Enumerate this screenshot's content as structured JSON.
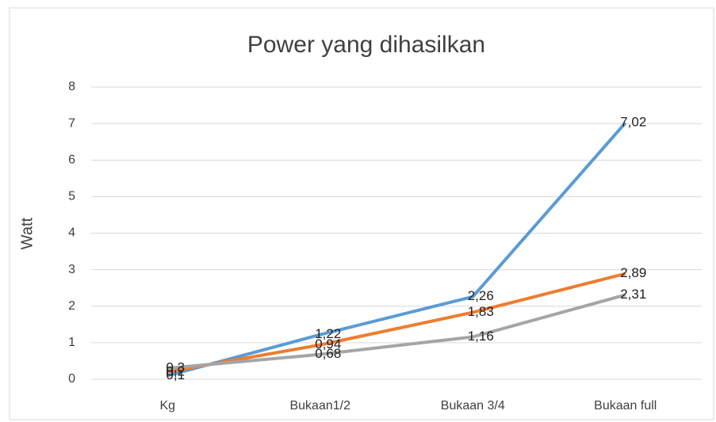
{
  "chart_data": {
    "type": "line",
    "title": "Power yang dihasilkan",
    "y_label": "Watt",
    "categories": [
      "Kg",
      "Bukaan1/2",
      "Bukaan 3/4",
      "Bukaan full"
    ],
    "series": [
      {
        "color": "#5b9bd5",
        "values": [
          0.1,
          1.22,
          2.26,
          7.02
        ],
        "value_labels": [
          "0,1",
          "1,22",
          "2,26",
          "7,02"
        ]
      },
      {
        "color": "#ed7d31",
        "values": [
          0.2,
          0.94,
          1.83,
          2.89
        ],
        "value_labels": [
          "0,2",
          "0,94",
          "1,83",
          "2,89"
        ]
      },
      {
        "color": "#a5a5a5",
        "values": [
          0.3,
          0.68,
          1.16,
          2.31
        ],
        "value_labels": [
          "0,3",
          "0,68",
          "1,16",
          "2,31"
        ]
      }
    ],
    "ylim": [
      0,
      8
    ],
    "yticks": [
      0,
      1,
      2,
      3,
      4,
      5,
      6,
      7,
      8
    ],
    "grid": true
  }
}
